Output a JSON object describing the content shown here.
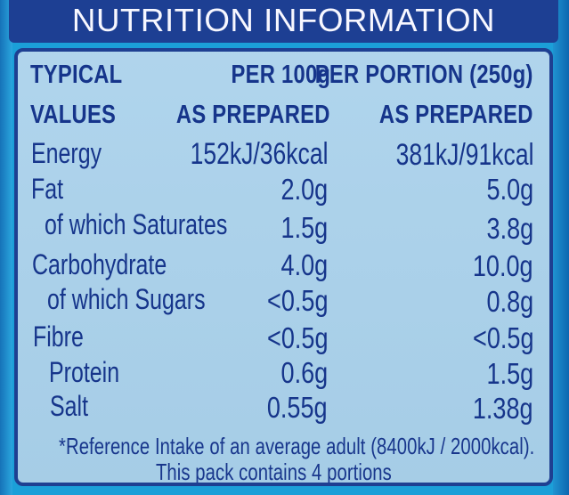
{
  "header": {
    "title": "NUTRITION INFORMATION"
  },
  "columns": {
    "label_line1": "TYPICAL",
    "label_line2": "VALUES",
    "per100_line1": "PER 100g",
    "per100_line2": "AS PREPARED",
    "portion_line1": "PER PORTION (250g)",
    "portion_line2": "AS PREPARED"
  },
  "rows": [
    {
      "label": "Energy",
      "per100": "152kJ/36kcal",
      "portion": "381kJ/91kcal"
    },
    {
      "label": "Fat",
      "per100": "2.0g",
      "portion": "5.0g"
    },
    {
      "label": "of which Saturates",
      "per100": "1.5g",
      "portion": "3.8g"
    },
    {
      "label": "Carbohydrate",
      "per100": "4.0g",
      "portion": "10.0g"
    },
    {
      "label": "of which Sugars",
      "per100": "<0.5g",
      "portion": "0.8g"
    },
    {
      "label": "Fibre",
      "per100": "<0.5g",
      "portion": "<0.5g"
    },
    {
      "label": "Protein",
      "per100": "0.6g",
      "portion": "1.5g"
    },
    {
      "label": "Salt",
      "per100": "0.55g",
      "portion": "1.38g"
    }
  ],
  "footer": {
    "line1": "*Reference Intake of an average adult (8400kJ / 2000kcal).",
    "line2": "This pack contains 4 portions"
  },
  "colors": {
    "background": "#1b9fd8",
    "header_bar": "#1d3f93",
    "panel": "#a9d1eb",
    "text": "#16358b"
  }
}
